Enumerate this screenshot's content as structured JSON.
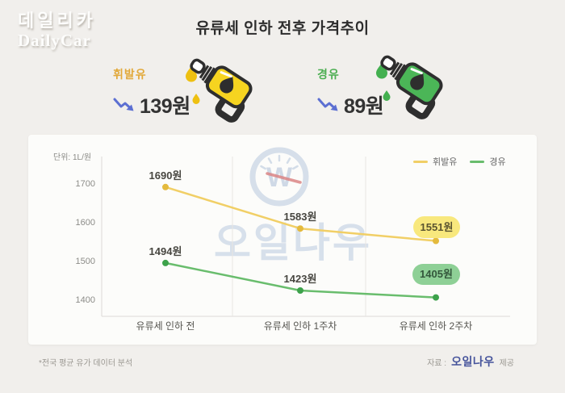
{
  "page": {
    "background": "#f1efec"
  },
  "logo": {
    "line1": "데일리카",
    "line2": "DailyCar"
  },
  "title": "유류세 인하 전후 가격추이",
  "stats": [
    {
      "label": "휘발유",
      "value": "139원",
      "label_color": "#e2a93b",
      "icon": "fuel-nozzle-icon",
      "icon_body_color": "#f6d420",
      "icon_drop_color": "#eec011",
      "trend": "down",
      "trend_color": "#5c6fd2"
    },
    {
      "label": "경유",
      "value": "89원",
      "label_color": "#4cae52",
      "icon": "fuel-nozzle-icon",
      "icon_body_color": "#4bb657",
      "icon_drop_color": "#44b050",
      "trend": "down",
      "trend_color": "#5c6fd2"
    }
  ],
  "chart": {
    "unit_label": "단위: 1L/원"
  },
  "chart_data": {
    "type": "line",
    "title": "유류세 인하 전후 가격추이",
    "categories": [
      "유류세 인하 전",
      "유류세 인하 1주차",
      "유류세 인하 2주차"
    ],
    "series": [
      {
        "name": "휘발유",
        "values": [
          1690,
          1583,
          1551
        ],
        "point_labels": [
          "1690원",
          "1583원",
          "1551원"
        ],
        "line_color": "#f1cf66",
        "dot_color": "#e4ba3d",
        "badge_bg": "#f8e87d",
        "badge_text_color": "#5a5430"
      },
      {
        "name": "경유",
        "values": [
          1494,
          1423,
          1405
        ],
        "point_labels": [
          "1494원",
          "1423원",
          "1405원"
        ],
        "line_color": "#69bd6d",
        "dot_color": "#3da24b",
        "badge_bg": "#8ed096",
        "badge_text_color": "#33563b"
      }
    ],
    "yticks": [
      1700,
      1600,
      1500,
      1400
    ],
    "ylim": [
      1370,
      1760
    ],
    "unit": "원/1L",
    "grid": "vertical-separators",
    "legend_position": "top-right"
  },
  "watermark": {
    "letter": "W",
    "text": "오일나우"
  },
  "footer": {
    "note": "*전국 평균 유가 데이터 분석",
    "source_prefix": "자료 :",
    "source_name": "오일나우",
    "source_suffix": "제공"
  }
}
